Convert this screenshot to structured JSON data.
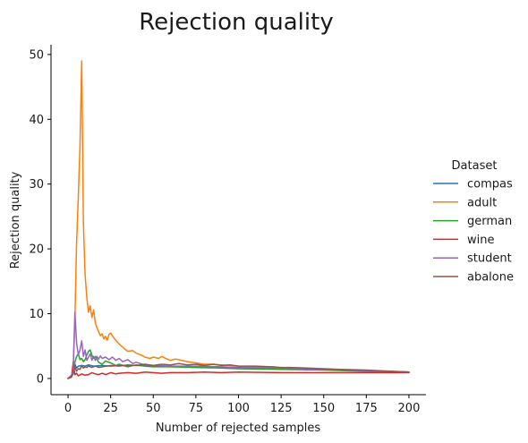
{
  "chart_data": {
    "type": "line",
    "title": "Rejection quality",
    "xlabel": "Number of rejected samples",
    "ylabel": "Rejection quality",
    "xlim": [
      -10,
      210
    ],
    "ylim": [
      -2.5,
      51.5
    ],
    "xticks": [
      0,
      25,
      50,
      75,
      100,
      125,
      150,
      175,
      200
    ],
    "yticks": [
      0,
      10,
      20,
      30,
      40,
      50
    ],
    "grid": false,
    "legend": {
      "title": "Dataset",
      "placement": "right"
    },
    "series": [
      {
        "name": "compas",
        "color": "#1f77b4",
        "x": [
          0,
          2,
          3,
          4,
          5,
          6,
          8,
          10,
          12,
          15,
          20,
          25,
          30,
          40,
          50,
          60,
          75,
          90,
          100,
          125,
          150,
          175,
          200
        ],
        "y": [
          0,
          0.5,
          1.2,
          2.2,
          1.6,
          1.9,
          2.0,
          1.9,
          2.1,
          1.9,
          2.0,
          1.9,
          2.0,
          2.0,
          1.9,
          1.9,
          1.8,
          1.7,
          1.6,
          1.5,
          1.4,
          1.2,
          1.0
        ]
      },
      {
        "name": "adult",
        "color": "#ff7f0e",
        "x": [
          0,
          2,
          3,
          4,
          5,
          6,
          7,
          8,
          9,
          10,
          11,
          12,
          13,
          14,
          15,
          16,
          17,
          18,
          19,
          20,
          21,
          22,
          23,
          24,
          25,
          27,
          30,
          33,
          35,
          38,
          40,
          43,
          45,
          48,
          50,
          53,
          55,
          58,
          60,
          63,
          65,
          70,
          75,
          80,
          85,
          90,
          95,
          100,
          110,
          120,
          125,
          130,
          140,
          150,
          160,
          170,
          175,
          180,
          190,
          200
        ],
        "y": [
          0,
          0.2,
          1.5,
          9.0,
          21.0,
          28.0,
          36.0,
          49.0,
          24.0,
          16.0,
          12.5,
          10.2,
          11.2,
          9.4,
          10.6,
          8.6,
          7.8,
          7.2,
          6.6,
          6.9,
          6.1,
          6.5,
          5.9,
          6.8,
          7.0,
          6.2,
          5.3,
          4.6,
          4.2,
          4.3,
          3.9,
          3.6,
          3.3,
          3.1,
          3.3,
          3.1,
          3.4,
          3.0,
          2.8,
          3.0,
          2.9,
          2.6,
          2.4,
          2.2,
          2.2,
          2.1,
          2.0,
          1.9,
          1.8,
          1.7,
          1.6,
          1.6,
          1.5,
          1.4,
          1.3,
          1.2,
          1.2,
          1.1,
          1.1,
          1.0
        ]
      },
      {
        "name": "german",
        "color": "#2ca02c",
        "x": [
          0,
          2,
          3,
          4,
          5,
          6,
          7,
          8,
          9,
          10,
          11,
          12,
          13,
          14,
          15,
          16,
          18,
          20,
          22,
          25,
          28,
          30,
          35,
          40,
          45,
          50,
          60,
          75,
          90,
          100,
          125,
          150,
          175,
          200
        ],
        "y": [
          0,
          0.3,
          1.0,
          2.5,
          3.4,
          3.8,
          2.9,
          3.1,
          2.6,
          2.9,
          3.6,
          4.2,
          4.4,
          3.6,
          3.1,
          3.4,
          2.5,
          2.2,
          2.7,
          2.4,
          2.0,
          2.2,
          1.8,
          2.1,
          1.9,
          1.8,
          1.8,
          1.7,
          1.6,
          1.5,
          1.4,
          1.3,
          1.1,
          1.0
        ]
      },
      {
        "name": "wine",
        "color": "#d62728",
        "x": [
          0,
          2,
          3,
          4,
          5,
          6,
          8,
          10,
          12,
          14,
          16,
          18,
          20,
          22,
          25,
          28,
          30,
          35,
          40,
          45,
          50,
          55,
          60,
          70,
          80,
          90,
          100,
          125,
          150,
          175,
          200
        ],
        "y": [
          0,
          0.2,
          2.5,
          0.6,
          0.8,
          0.4,
          0.7,
          0.5,
          0.6,
          0.9,
          0.7,
          0.6,
          0.8,
          0.6,
          0.9,
          0.7,
          0.8,
          0.9,
          0.8,
          1.0,
          0.9,
          0.8,
          0.9,
          0.9,
          1.0,
          0.9,
          1.0,
          0.9,
          0.9,
          0.9,
          0.9
        ]
      },
      {
        "name": "student",
        "color": "#9467bd",
        "x": [
          0,
          2,
          3,
          4,
          5,
          6,
          7,
          8,
          9,
          10,
          11,
          12,
          13,
          14,
          15,
          16,
          17,
          18,
          19,
          20,
          22,
          24,
          26,
          28,
          30,
          32,
          35,
          38,
          40,
          45,
          50,
          60,
          75,
          90,
          100,
          125,
          150,
          175,
          200
        ],
        "y": [
          0,
          0.5,
          1.2,
          10.2,
          5.5,
          3.6,
          4.4,
          5.8,
          3.4,
          4.4,
          2.8,
          3.3,
          3.8,
          2.8,
          3.4,
          2.8,
          3.4,
          3.0,
          3.5,
          3.1,
          3.3,
          2.9,
          3.3,
          2.8,
          3.1,
          2.6,
          2.9,
          2.3,
          2.5,
          2.1,
          2.0,
          1.9,
          1.9,
          1.8,
          1.7,
          1.6,
          1.4,
          1.2,
          1.0
        ]
      },
      {
        "name": "abalone",
        "color": "#8c564b",
        "x": [
          0,
          2,
          3,
          4,
          5,
          6,
          7,
          8,
          9,
          10,
          11,
          12,
          14,
          16,
          18,
          20,
          25,
          30,
          35,
          40,
          45,
          50,
          55,
          60,
          65,
          70,
          75,
          80,
          85,
          90,
          95,
          100,
          110,
          120,
          125,
          130,
          140,
          150,
          160,
          175,
          190,
          200
        ],
        "y": [
          0,
          0.3,
          0.7,
          1.8,
          1.1,
          1.5,
          1.4,
          2.0,
          1.6,
          1.8,
          1.7,
          1.9,
          1.7,
          1.9,
          1.7,
          1.8,
          2.0,
          1.9,
          2.1,
          2.0,
          2.2,
          2.0,
          2.2,
          2.1,
          2.3,
          2.1,
          2.2,
          2.0,
          2.2,
          2.0,
          2.1,
          1.9,
          1.9,
          1.8,
          1.7,
          1.7,
          1.6,
          1.5,
          1.4,
          1.3,
          1.1,
          1.0
        ]
      }
    ]
  }
}
